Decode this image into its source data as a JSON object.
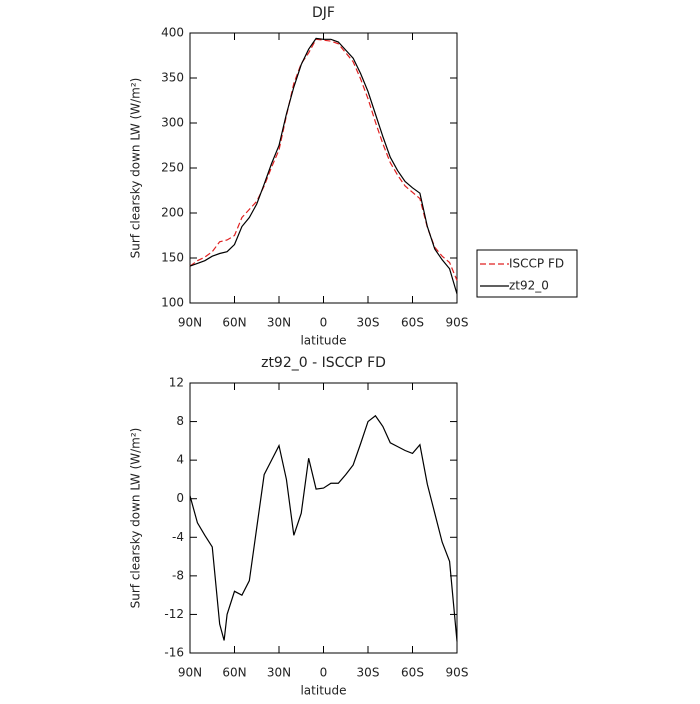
{
  "chart_data": [
    {
      "type": "line",
      "title": "DJF",
      "xlabel": "latitude",
      "ylabel": "Surf clearsky down LW (W/m²)",
      "x": [
        90,
        85,
        80,
        75,
        70,
        65,
        60,
        55,
        50,
        45,
        40,
        35,
        30,
        25,
        20,
        15,
        10,
        5,
        0,
        -5,
        -10,
        -15,
        -20,
        -25,
        -30,
        -35,
        -40,
        -45,
        -50,
        -55,
        -60,
        -65,
        -70,
        -75,
        -80,
        -85,
        -90
      ],
      "series": [
        {
          "name": "ISCCP FD",
          "color": "#e02020",
          "dash": true,
          "values": [
            141,
            147,
            151,
            157,
            168,
            170,
            175,
            195,
            204,
            213,
            230,
            251,
            270,
            308,
            344,
            366,
            378,
            393,
            392,
            391,
            388,
            378,
            368,
            349,
            327,
            301,
            277,
            256,
            242,
            230,
            223,
            216,
            184,
            162,
            152,
            145,
            125
          ]
        },
        {
          "name": "zt92_0",
          "color": "#000000",
          "dash": false,
          "values": [
            141,
            144,
            147,
            152,
            155,
            157,
            165,
            185,
            195,
            210,
            232,
            255,
            275,
            310,
            340,
            365,
            382,
            394,
            393,
            393,
            390,
            381,
            372,
            355,
            335,
            310,
            285,
            262,
            247,
            235,
            228,
            222,
            185,
            160,
            148,
            138,
            110
          ]
        }
      ],
      "xlim": [
        90,
        -90
      ],
      "xticks": [
        {
          "value": 90,
          "label": "90N"
        },
        {
          "value": 60,
          "label": "60N"
        },
        {
          "value": 30,
          "label": "30N"
        },
        0,
        {
          "value": -30,
          "label": "30S"
        },
        {
          "value": -60,
          "label": "60S"
        },
        {
          "value": -90,
          "label": "90S"
        }
      ],
      "ylim": [
        100,
        400
      ],
      "yticks": [
        100,
        150,
        200,
        250,
        300,
        350,
        400
      ],
      "legend": "right"
    },
    {
      "type": "line",
      "title": "zt92_0 - ISCCP FD",
      "xlabel": "latitude",
      "ylabel": "Surf clearsky down LW (W/m²)",
      "x": [
        90,
        85,
        80,
        75,
        70,
        67,
        65,
        60,
        55,
        50,
        45,
        40,
        35,
        30,
        25,
        20,
        15,
        10,
        5,
        0,
        -5,
        -10,
        -15,
        -20,
        -25,
        -30,
        -35,
        -40,
        -45,
        -50,
        -55,
        -60,
        -65,
        -70,
        -75,
        -80,
        -85,
        -90
      ],
      "series": [
        {
          "color": "#000000",
          "dash": false,
          "values": [
            0.3,
            -2.5,
            -3.8,
            -5,
            -13,
            -14.7,
            -12,
            -9.6,
            -10,
            -8.5,
            -3,
            2.5,
            4,
            5.5,
            2,
            -3.8,
            -1.5,
            4.2,
            1,
            1.1,
            1.6,
            1.6,
            2.5,
            3.5,
            5.7,
            8,
            8.6,
            7.5,
            5.8,
            5.4,
            5,
            4.7,
            5.6,
            1.5,
            -1.5,
            -4.5,
            -6.5,
            -14.8
          ]
        }
      ],
      "xlim": [
        90,
        -90
      ],
      "xticks": [
        {
          "value": 90,
          "label": "90N"
        },
        {
          "value": 60,
          "label": "60N"
        },
        {
          "value": 30,
          "label": "30N"
        },
        0,
        {
          "value": -30,
          "label": "30S"
        },
        {
          "value": -60,
          "label": "60S"
        },
        {
          "value": -90,
          "label": "90S"
        }
      ],
      "ylim": [
        -16,
        12
      ],
      "yticks": [
        -16,
        -12,
        -8,
        -4,
        0,
        4,
        8,
        12
      ]
    }
  ]
}
